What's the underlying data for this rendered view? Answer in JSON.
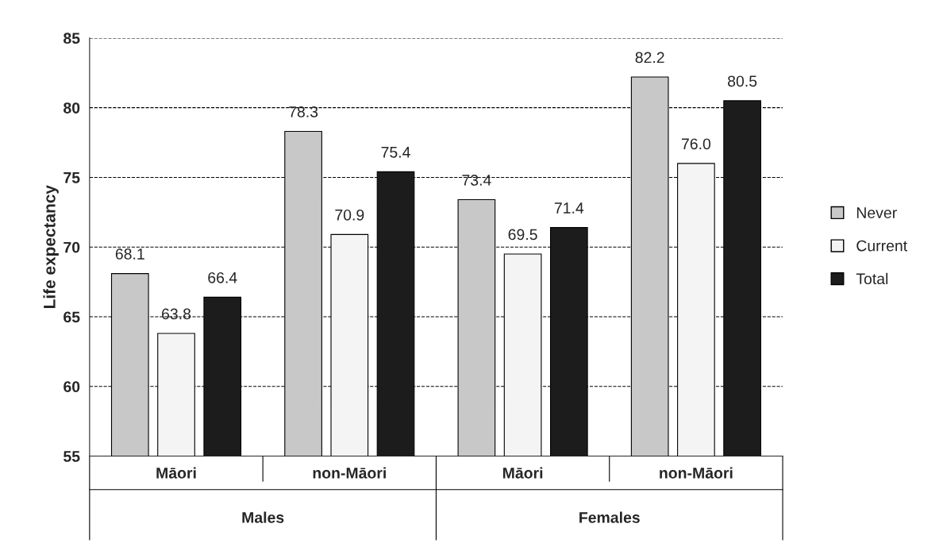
{
  "chart_data": {
    "type": "bar",
    "ylabel": "Life expectancy",
    "categories": [
      "Māori",
      "non-Māori",
      "Māori",
      "non-Māori"
    ],
    "series": [
      {
        "name": "Never",
        "color": "#c8c8c8",
        "values": [
          68.1,
          78.3,
          73.4,
          82.2
        ],
        "value_labels": [
          "68.1",
          "78.3",
          "73.4",
          "82.2"
        ]
      },
      {
        "name": "Current",
        "color": "#f4f4f4",
        "values": [
          63.8,
          70.9,
          69.5,
          76.0
        ],
        "value_labels": [
          "63.8",
          "70.9",
          "69.5",
          "76.0"
        ]
      },
      {
        "name": "Total",
        "color": "#1c1c1c",
        "values": [
          66.4,
          75.4,
          71.4,
          80.5
        ],
        "value_labels": [
          "66.4",
          "75.4",
          "71.4",
          "80.5"
        ]
      }
    ],
    "annotations": [
      "Males",
      "Females"
    ],
    "ylim": [
      55,
      85
    ],
    "yticks": [
      55,
      60,
      65,
      70,
      75,
      80,
      85
    ],
    "grid": "y",
    "line_style": "dashed",
    "legend": "right"
  }
}
